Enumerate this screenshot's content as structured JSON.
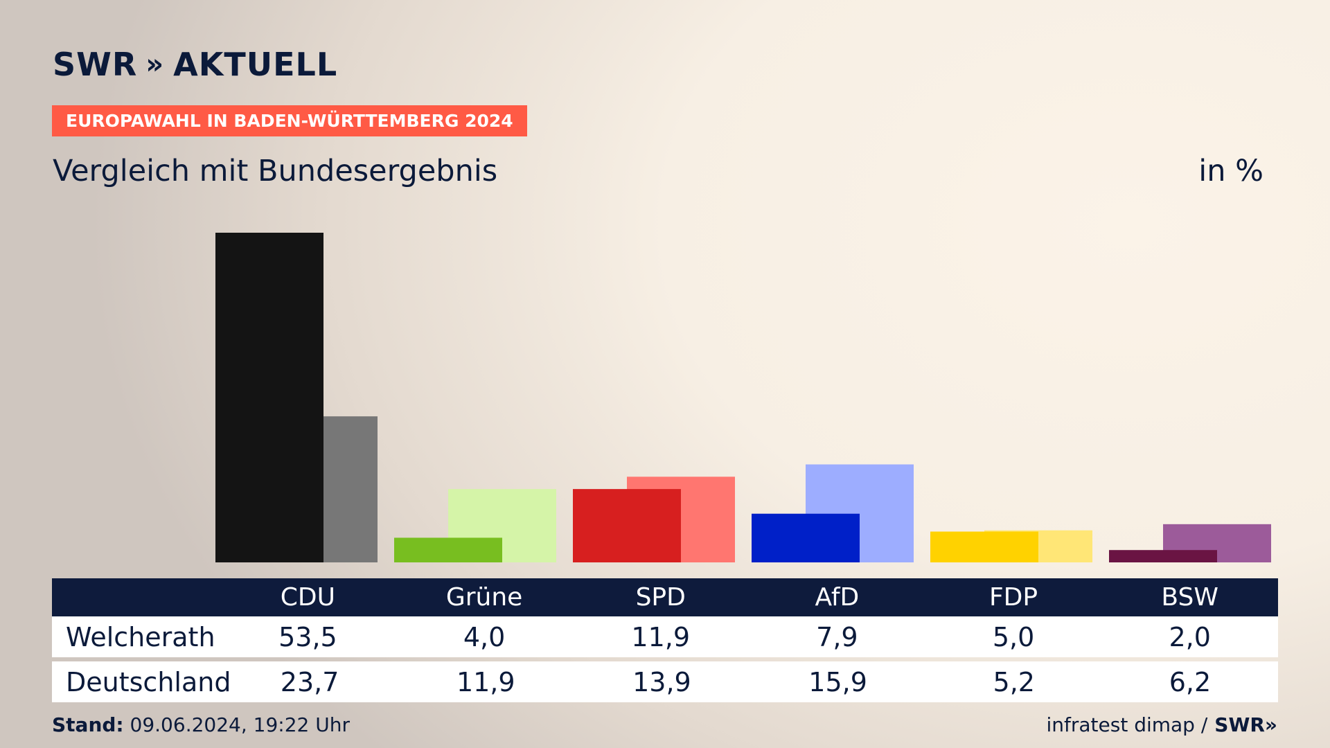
{
  "brand": {
    "name": "SWR",
    "chevrons": "»",
    "product": "AKTUELL"
  },
  "banner": "EUROPAWAHL IN BADEN-WÜRTTEMBERG 2024",
  "subtitle": "Vergleich mit Bundesergebnis",
  "unit": "in %",
  "chart_data": {
    "type": "bar",
    "title": "Vergleich mit Bundesergebnis",
    "categories": [
      "CDU",
      "Grüne",
      "SPD",
      "AfD",
      "FDP",
      "BSW"
    ],
    "series": [
      {
        "name": "Welcherath",
        "values": [
          53.5,
          4.0,
          11.9,
          7.9,
          5.0,
          2.0
        ],
        "colors": [
          "#141414",
          "#78be20",
          "#d71f1f",
          "#0020c8",
          "#ffd200",
          "#6a1443"
        ]
      },
      {
        "name": "Deutschland",
        "values": [
          23.7,
          11.9,
          13.9,
          15.9,
          5.2,
          6.2
        ],
        "colors": [
          "#777777",
          "#d5f4a8",
          "#ff7670",
          "#9dadff",
          "#ffe676",
          "#9c5b9a"
        ]
      }
    ],
    "ylim": [
      0,
      53.5
    ],
    "legend": "table-below"
  },
  "table": {
    "headers": [
      "",
      "CDU",
      "Grüne",
      "SPD",
      "AfD",
      "FDP",
      "BSW"
    ],
    "rows": [
      {
        "label": "Welcherath",
        "values": [
          "53,5",
          "4,0",
          "11,9",
          "7,9",
          "5,0",
          "2,0"
        ]
      },
      {
        "label": "Deutschland",
        "values": [
          "23,7",
          "11,9",
          "13,9",
          "15,9",
          "5,2",
          "6,2"
        ]
      }
    ]
  },
  "footer": {
    "stand_label": "Stand:",
    "stand_value": "09.06.2024, 19:22 Uhr",
    "source": "infratest dimap /",
    "source_brand": "SWR»"
  }
}
